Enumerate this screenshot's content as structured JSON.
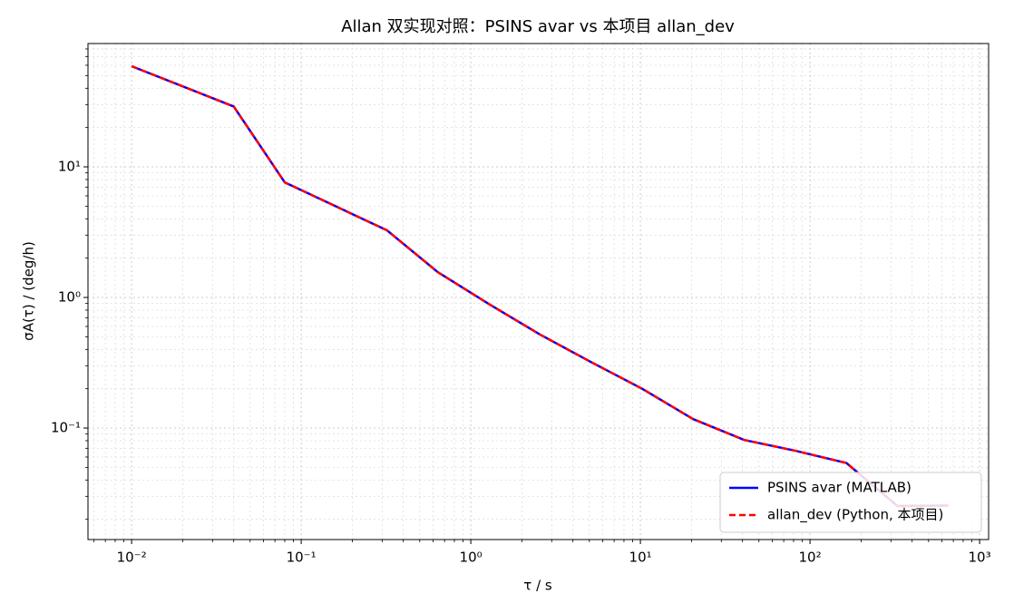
{
  "chart_data": {
    "type": "line",
    "title": "Allan 双实现对照：PSINS avar vs 本项目 allan_dev",
    "x_label": "τ / s",
    "y_label": "σA(τ) / (deg/h)",
    "x": [
      0.01,
      0.04,
      0.08,
      0.32,
      0.64,
      1.28,
      2.56,
      5.12,
      10.24,
      20.48,
      40.96,
      81.92,
      163.84,
      327.68,
      655.36
    ],
    "series": [
      {
        "name": "PSINS avar (MATLAB)",
        "color": "#0000ff",
        "linestyle": "solid",
        "values": [
          59,
          29,
          7.6,
          3.27,
          1.56,
          0.89,
          0.52,
          0.32,
          0.2,
          0.117,
          0.081,
          0.067,
          0.054,
          0.0253,
          0.0255
        ]
      },
      {
        "name": "allan_dev (Python, 本项目)",
        "color": "#ff0000",
        "linestyle": "dashed",
        "values": [
          59,
          29,
          7.6,
          3.27,
          1.56,
          0.89,
          0.52,
          0.32,
          0.2,
          0.117,
          0.081,
          0.067,
          0.054,
          0.0253,
          0.0255
        ]
      }
    ],
    "xscale": "log",
    "yscale": "log",
    "xlim": [
      0.00553,
      1130
    ],
    "ylim": [
      0.014,
      88
    ],
    "xticks": [
      {
        "value": 0.01,
        "label": "10⁻²"
      },
      {
        "value": 0.1,
        "label": "10⁻¹"
      },
      {
        "value": 1,
        "label": "10⁰"
      },
      {
        "value": 10,
        "label": "10¹"
      },
      {
        "value": 100,
        "label": "10²"
      },
      {
        "value": 1000,
        "label": "10³"
      }
    ],
    "yticks": [
      {
        "value": 0.1,
        "label": "10⁻¹"
      },
      {
        "value": 1,
        "label": "10⁰"
      },
      {
        "value": 10,
        "label": "10¹"
      }
    ],
    "grid": "both",
    "legend": "lower right"
  }
}
